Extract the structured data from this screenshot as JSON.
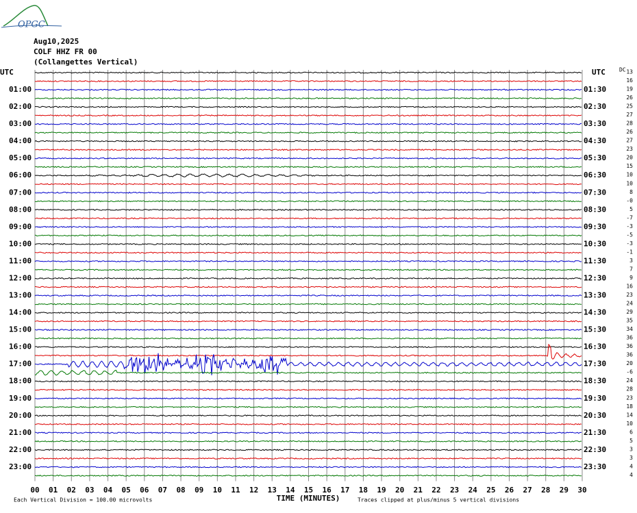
{
  "header": {
    "logo": "OPGC",
    "date": "Aug10,2025",
    "station": "COLF HHZ FR 00",
    "location": "(Collangettes Vertical)"
  },
  "left_axis": {
    "title": "UTC",
    "labels": [
      "01:00",
      "02:00",
      "03:00",
      "04:00",
      "05:00",
      "06:00",
      "07:00",
      "08:00",
      "09:00",
      "10:00",
      "11:00",
      "12:00",
      "13:00",
      "14:00",
      "15:00",
      "16:00",
      "17:00",
      "18:00",
      "19:00",
      "20:00",
      "21:00",
      "22:00",
      "23:00"
    ]
  },
  "right_axis": {
    "title": "UTC",
    "labels": [
      "01:30",
      "02:30",
      "03:30",
      "04:30",
      "05:30",
      "06:30",
      "07:30",
      "08:30",
      "09:30",
      "10:30",
      "11:30",
      "12:30",
      "13:30",
      "14:30",
      "15:30",
      "16:30",
      "17:30",
      "18:30",
      "19:30",
      "20:30",
      "21:30",
      "22:30",
      "23:30"
    ]
  },
  "dc": {
    "title": "DC",
    "values": [
      "13",
      "16",
      "19",
      "26",
      "25",
      "27",
      "28",
      "26",
      "27",
      "23",
      "20",
      "15",
      "10",
      "10",
      "8",
      "-0",
      "5",
      "-7",
      "-3",
      "-5",
      "-3",
      "-1",
      "3",
      "7",
      "9",
      "16",
      "23",
      "24",
      "29",
      "35",
      "34",
      "36",
      "36",
      "36",
      "20",
      "-6",
      "24",
      "28",
      "23",
      "18",
      "14",
      "10",
      "6",
      "5",
      "3",
      "3",
      "4",
      "4"
    ]
  },
  "x_axis": {
    "title": "TIME (MINUTES)",
    "labels": [
      "00",
      "01",
      "02",
      "03",
      "04",
      "05",
      "06",
      "07",
      "08",
      "09",
      "10",
      "11",
      "12",
      "13",
      "14",
      "15",
      "16",
      "17",
      "18",
      "19",
      "20",
      "21",
      "22",
      "23",
      "24",
      "25",
      "26",
      "27",
      "28",
      "29",
      "30"
    ]
  },
  "footer": {
    "scale": "Each Vertical Division =  100.00 microvolts",
    "clip": "Traces clipped at plus/minus 5 vertical divisions"
  }
}
